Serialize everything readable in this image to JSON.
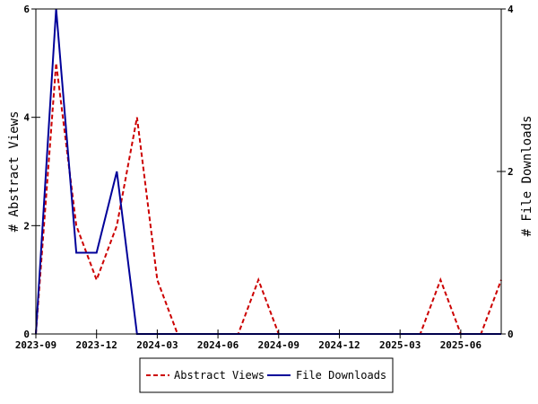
{
  "chart_data": {
    "type": "line",
    "ylabel_left": "# Abstract Views",
    "ylabel_right": "# File Downloads",
    "xlabel": "",
    "x_ticks": [
      "2023-09",
      "2023-12",
      "2024-03",
      "2024-06",
      "2024-09",
      "2024-12",
      "2025-03",
      "2025-06"
    ],
    "y_left_ticks": [
      "0",
      "2",
      "4",
      "6"
    ],
    "y_right_ticks": [
      "0",
      "2",
      "4"
    ],
    "ylim_left": [
      0,
      6
    ],
    "ylim_right": [
      0,
      4
    ],
    "grid": false,
    "legend_position": "bottom-center",
    "x": [
      "2023-09",
      "2023-10",
      "2023-11",
      "2023-12",
      "2024-01",
      "2024-02",
      "2024-03",
      "2024-04",
      "2024-05",
      "2024-06",
      "2024-07",
      "2024-08",
      "2024-09",
      "2024-10",
      "2024-11",
      "2024-12",
      "2025-01",
      "2025-02",
      "2025-03",
      "2025-04",
      "2025-05",
      "2025-06",
      "2025-07",
      "2025-08"
    ],
    "series": [
      {
        "name": "Abstract Views",
        "axis": "left",
        "color": "#cc0000",
        "style": "dashed",
        "values": [
          0,
          5,
          2,
          1,
          2,
          4,
          1,
          0,
          0,
          0,
          0,
          1,
          0,
          0,
          0,
          0,
          0,
          0,
          0,
          0,
          1,
          0,
          0,
          1
        ]
      },
      {
        "name": "File Downloads",
        "axis": "right",
        "color": "#000099",
        "style": "solid",
        "values": [
          0,
          4,
          1,
          1,
          2,
          0,
          0,
          0,
          0,
          0,
          0,
          0,
          0,
          0,
          0,
          0,
          0,
          0,
          0,
          0,
          0,
          0,
          0,
          0
        ]
      }
    ]
  }
}
